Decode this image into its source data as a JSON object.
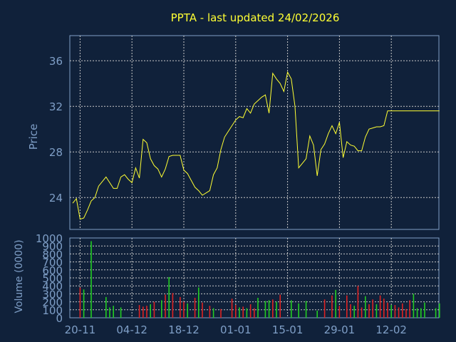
{
  "colors": {
    "background": "#10213a",
    "text_title": "#ffff33",
    "axis_text": "#7f9fc7",
    "grid": "#c8c8c8",
    "frame": "#7f9fc7",
    "price_line": "#ffff33",
    "volume_up": "#22cc22",
    "volume_down": "#dd2222"
  },
  "chart_data": [
    {
      "type": "line",
      "title": "PPTA - last updated 24/02/2026",
      "ylabel": "Price",
      "ylim": [
        21.2,
        38.2
      ],
      "yticks": [
        24,
        28,
        32,
        36
      ],
      "x_dates": [
        "20-11",
        "04-12",
        "18-12",
        "01-01",
        "15-01",
        "29-01",
        "12-02"
      ],
      "grid": true,
      "series": [
        {
          "x": [
            0,
            1,
            2,
            3,
            4,
            5,
            6,
            7,
            8,
            9,
            10,
            11,
            12,
            13,
            14,
            15,
            16,
            17,
            18,
            19,
            20,
            21,
            22,
            23,
            24,
            25,
            26,
            27,
            28,
            29,
            30,
            31,
            32,
            33,
            34,
            35,
            36,
            37,
            38,
            39,
            40,
            41,
            42,
            43,
            44,
            45,
            46,
            47,
            48,
            49,
            50,
            51,
            52,
            53,
            54,
            55,
            56,
            57,
            58,
            59,
            60,
            61,
            62,
            63,
            64,
            65,
            66,
            67,
            68,
            69,
            70,
            71,
            72,
            73,
            74,
            75,
            76,
            77,
            78,
            79,
            80,
            81,
            82,
            83,
            84,
            85,
            86,
            87,
            88,
            89,
            90,
            91,
            92,
            93,
            94,
            95,
            96,
            97,
            98,
            99
          ],
          "values": [
            23.5,
            23.9,
            22.1,
            22.2,
            22.9,
            23.7,
            24.0,
            25.0,
            25.4,
            25.8,
            25.3,
            24.8,
            24.8,
            25.8,
            26.0,
            25.6,
            25.3,
            26.6,
            25.7,
            29.1,
            28.8,
            27.4,
            26.8,
            26.5,
            25.8,
            26.5,
            27.6,
            27.7,
            27.7,
            27.7,
            26.4,
            26.1,
            25.5,
            24.9,
            24.6,
            24.2,
            24.4,
            24.6,
            26.0,
            26.6,
            28.2,
            29.3,
            29.8,
            30.3,
            30.8,
            31.1,
            31.0,
            31.8,
            31.4,
            32.2,
            32.5,
            32.8,
            33.0,
            31.4,
            34.9,
            34.4,
            34.0,
            33.3,
            35.0,
            34.4,
            32.0,
            26.6,
            27.0,
            27.4,
            29.4,
            28.6,
            25.9,
            28.2,
            28.7,
            29.6,
            30.3,
            29.6,
            30.6,
            27.5,
            28.9,
            28.6,
            28.5,
            28.1,
            28.1,
            29.3,
            30.0,
            30.1,
            30.2,
            30.2,
            30.3,
            31.6,
            31.6,
            31.6,
            31.6,
            31.6,
            31.6,
            31.6,
            31.6,
            31.6,
            31.6,
            31.6,
            31.6,
            31.6,
            31.6,
            31.6
          ]
        }
      ]
    },
    {
      "type": "bar",
      "ylabel": "Volume (0000)",
      "ylim": [
        0,
        1000
      ],
      "yticks": [
        0,
        100,
        200,
        300,
        400,
        500,
        600,
        700,
        800,
        900,
        1000
      ],
      "x_dates": [
        "20-11",
        "04-12",
        "18-12",
        "01-01",
        "15-01",
        "29-01",
        "12-02"
      ],
      "grid": true,
      "series": [
        {
          "name": "up",
          "bars": [
            [
              3,
              355
            ],
            [
              5,
              960
            ],
            [
              9,
              260
            ],
            [
              10,
              130
            ],
            [
              11,
              150
            ],
            [
              13,
              130
            ],
            [
              21,
              170
            ],
            [
              24,
              220
            ],
            [
              26,
              510
            ],
            [
              31,
              180
            ],
            [
              34,
              380
            ],
            [
              38,
              120
            ],
            [
              45,
              130
            ],
            [
              47,
              120
            ],
            [
              50,
              250
            ],
            [
              52,
              210
            ],
            [
              53,
              220
            ],
            [
              55,
              200
            ],
            [
              59,
              220
            ],
            [
              61,
              180
            ],
            [
              63,
              210
            ],
            [
              66,
              90
            ],
            [
              71,
              350
            ],
            [
              76,
              150
            ],
            [
              79,
              270
            ],
            [
              82,
              170
            ],
            [
              86,
              160
            ],
            [
              92,
              300
            ],
            [
              93,
              120
            ],
            [
              94,
              120
            ],
            [
              95,
              190
            ],
            [
              98,
              120
            ],
            [
              99,
              180
            ]
          ]
        },
        {
          "name": "down",
          "bars": [
            [
              2,
              380
            ],
            [
              18,
              160
            ],
            [
              19,
              140
            ],
            [
              20,
              150
            ],
            [
              22,
              200
            ],
            [
              25,
              290
            ],
            [
              27,
              310
            ],
            [
              29,
              260
            ],
            [
              30,
              200
            ],
            [
              33,
              250
            ],
            [
              35,
              190
            ],
            [
              37,
              150
            ],
            [
              40,
              110
            ],
            [
              43,
              240
            ],
            [
              44,
              160
            ],
            [
              46,
              140
            ],
            [
              48,
              170
            ],
            [
              49,
              120
            ],
            [
              54,
              230
            ],
            [
              56,
              290
            ],
            [
              68,
              230
            ],
            [
              70,
              280
            ],
            [
              72,
              150
            ],
            [
              74,
              280
            ],
            [
              75,
              170
            ],
            [
              77,
              400
            ],
            [
              78,
              130
            ],
            [
              80,
              170
            ],
            [
              81,
              230
            ],
            [
              83,
              280
            ],
            [
              84,
              240
            ],
            [
              85,
              190
            ],
            [
              87,
              160
            ],
            [
              88,
              130
            ],
            [
              89,
              180
            ],
            [
              90,
              110
            ],
            [
              91,
              220
            ]
          ]
        }
      ]
    }
  ]
}
